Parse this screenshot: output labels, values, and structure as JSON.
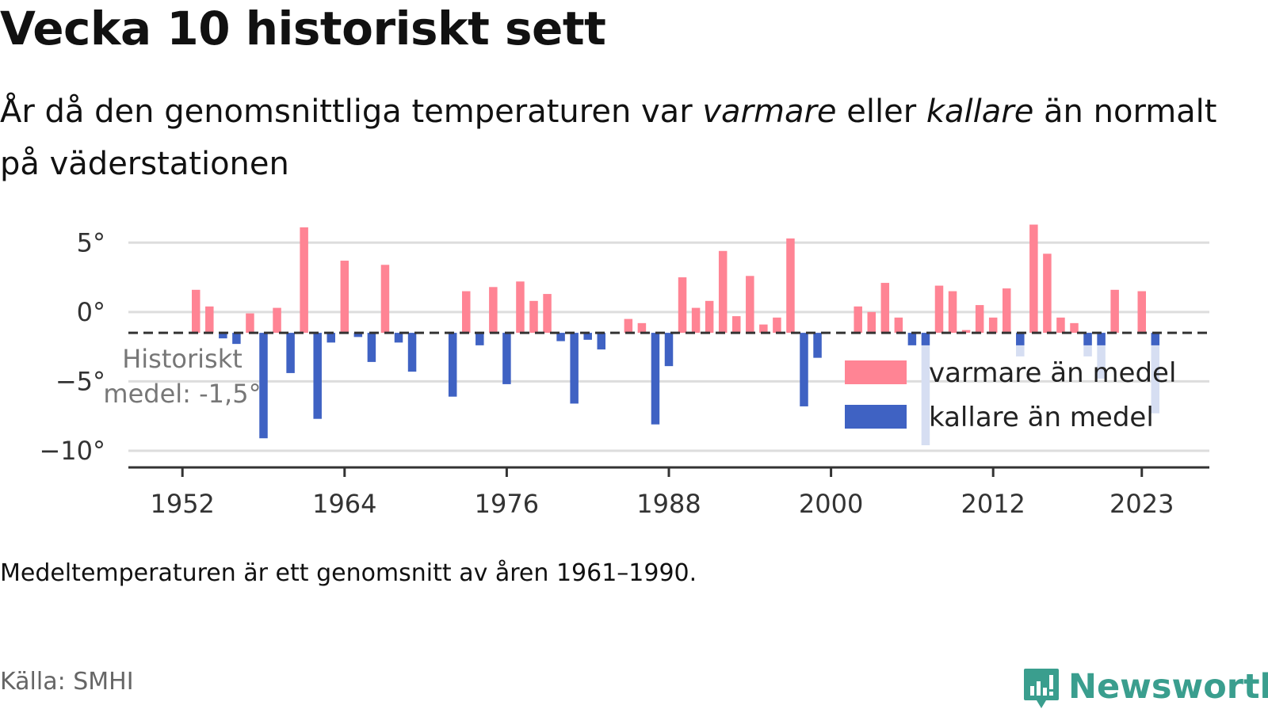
{
  "header": {
    "title": "Vecka 10 historiskt sett",
    "subtitle_part1": "År då den genomsnittliga temperaturen var ",
    "subtitle_warm": "varmare",
    "subtitle_part2": " eller ",
    "subtitle_cold": "kallare",
    "subtitle_part3": " än normalt på väderstationen"
  },
  "footer": {
    "note": "Medeltemperaturen är ett genomsnitt av åren 1961–1990.",
    "source": "Källa: SMHI",
    "brand": "Newsworthy"
  },
  "colors": {
    "warm": "#ff8494",
    "cold": "#3f62c3",
    "cold_faded": "#d6def2",
    "grid": "#dddddd",
    "baseline": "#333333",
    "brand": "#3a9e8e"
  },
  "chart_data": {
    "type": "bar",
    "title": "Vecka 10 historiskt sett",
    "reference_line": {
      "value": -1.5,
      "label_line1": "Historiskt",
      "label_line2": "medel: -1,5°"
    },
    "y_ticks": [
      {
        "value": 5,
        "label": "5°"
      },
      {
        "value": 0,
        "label": "0°"
      },
      {
        "value": -5,
        "label": "−5°"
      },
      {
        "value": -10,
        "label": "−10°"
      }
    ],
    "ylim": [
      -11.2,
      6.5
    ],
    "x_ticks": [
      {
        "value": 1952,
        "label": "1952"
      },
      {
        "value": 1964,
        "label": "1964"
      },
      {
        "value": 1976,
        "label": "1976"
      },
      {
        "value": 1988,
        "label": "1988"
      },
      {
        "value": 2000,
        "label": "2000"
      },
      {
        "value": 2012,
        "label": "2012"
      },
      {
        "value": 2023,
        "label": "2023"
      }
    ],
    "xlim": [
      1948,
      2028
    ],
    "legend": {
      "position": "bottom-right",
      "items": [
        {
          "label": "varmare än medel",
          "color": "#ff8494"
        },
        {
          "label": "kallare än medel",
          "color": "#3f62c3"
        }
      ]
    },
    "grid": true,
    "data": [
      {
        "year": 1953,
        "value": 1.6
      },
      {
        "year": 1954,
        "value": 0.4
      },
      {
        "year": 1955,
        "value": -1.9
      },
      {
        "year": 1956,
        "value": -2.3
      },
      {
        "year": 1957,
        "value": -0.1
      },
      {
        "year": 1958,
        "value": -9.1
      },
      {
        "year": 1959,
        "value": 0.3
      },
      {
        "year": 1960,
        "value": -4.4
      },
      {
        "year": 1961,
        "value": 6.1
      },
      {
        "year": 1962,
        "value": -7.7
      },
      {
        "year": 1963,
        "value": -2.2
      },
      {
        "year": 1964,
        "value": 3.7
      },
      {
        "year": 1965,
        "value": -1.8
      },
      {
        "year": 1966,
        "value": -3.6
      },
      {
        "year": 1967,
        "value": 3.4
      },
      {
        "year": 1968,
        "value": -2.2
      },
      {
        "year": 1969,
        "value": -4.3
      },
      {
        "year": 1972,
        "value": -6.1
      },
      {
        "year": 1973,
        "value": 1.5
      },
      {
        "year": 1974,
        "value": -2.4
      },
      {
        "year": 1975,
        "value": 1.8
      },
      {
        "year": 1976,
        "value": -5.2
      },
      {
        "year": 1977,
        "value": 2.2
      },
      {
        "year": 1978,
        "value": 0.8
      },
      {
        "year": 1979,
        "value": 1.3
      },
      {
        "year": 1980,
        "value": -2.1
      },
      {
        "year": 1981,
        "value": -6.6
      },
      {
        "year": 1982,
        "value": -2.0
      },
      {
        "year": 1983,
        "value": -2.7
      },
      {
        "year": 1985,
        "value": -0.5
      },
      {
        "year": 1986,
        "value": -0.8
      },
      {
        "year": 1987,
        "value": -8.1
      },
      {
        "year": 1988,
        "value": -3.9
      },
      {
        "year": 1989,
        "value": 2.5
      },
      {
        "year": 1990,
        "value": 0.3
      },
      {
        "year": 1991,
        "value": 0.8
      },
      {
        "year": 1992,
        "value": 4.4
      },
      {
        "year": 1993,
        "value": -0.3
      },
      {
        "year": 1994,
        "value": 2.6
      },
      {
        "year": 1995,
        "value": -0.9
      },
      {
        "year": 1996,
        "value": -0.4
      },
      {
        "year": 1997,
        "value": 5.3
      },
      {
        "year": 1998,
        "value": -6.8
      },
      {
        "year": 1999,
        "value": -3.3
      },
      {
        "year": 2002,
        "value": 0.4
      },
      {
        "year": 2003,
        "value": 0.0
      },
      {
        "year": 2004,
        "value": 2.1
      },
      {
        "year": 2005,
        "value": -0.4
      },
      {
        "year": 2006,
        "value": -2.4
      },
      {
        "year": 2007,
        "value": -2.4,
        "faded_value": -9.6
      },
      {
        "year": 2008,
        "value": 1.9
      },
      {
        "year": 2009,
        "value": 1.5
      },
      {
        "year": 2010,
        "value": -1.3
      },
      {
        "year": 2011,
        "value": 0.5
      },
      {
        "year": 2012,
        "value": -0.4
      },
      {
        "year": 2013,
        "value": 1.7
      },
      {
        "year": 2014,
        "value": -2.4,
        "faded_value": -3.2
      },
      {
        "year": 2015,
        "value": 6.3
      },
      {
        "year": 2016,
        "value": 4.2
      },
      {
        "year": 2017,
        "value": -0.4
      },
      {
        "year": 2018,
        "value": -0.8
      },
      {
        "year": 2019,
        "value": -2.4,
        "faded_value": -3.2
      },
      {
        "year": 2020,
        "value": -2.4,
        "faded_value": -4.8
      },
      {
        "year": 2021,
        "value": 1.6
      },
      {
        "year": 2023,
        "value": 1.5
      },
      {
        "year": 2024,
        "value": -2.4,
        "faded_value": -7.3
      }
    ]
  }
}
